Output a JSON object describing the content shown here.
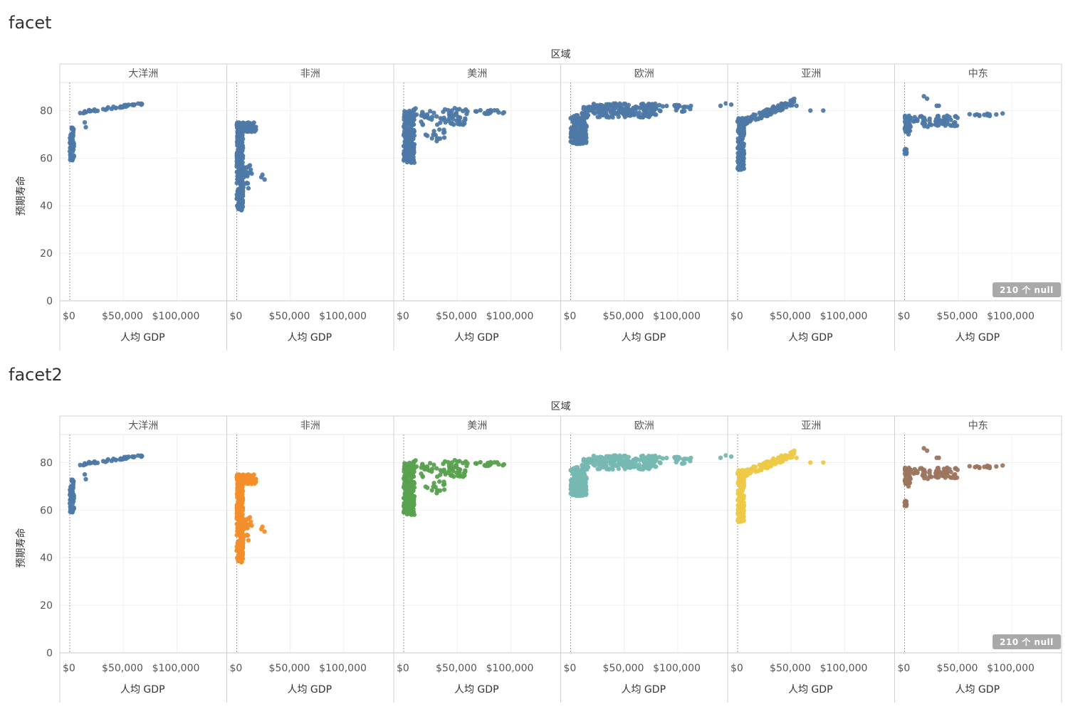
{
  "sheets": [
    {
      "title": "facet",
      "null_badge": "210 个 null",
      "chart_data": {
        "type": "scatter",
        "facet_header": "区域",
        "xlabel": "人均 GDP",
        "ylabel": "预期寿命",
        "x_ticks": [
          "$0",
          "$50,000",
          "$100,000"
        ],
        "y_ticks": [
          "0",
          "20",
          "40",
          "60",
          "80"
        ],
        "xlim": [
          0,
          140000
        ],
        "ylim": [
          0,
          90
        ],
        "color_mode": "single",
        "single_color": "#4e79a7",
        "facets": [
          {
            "name": "大洋洲",
            "color": "#4e79a7"
          },
          {
            "name": "非洲",
            "color": "#f28e2b"
          },
          {
            "name": "美洲",
            "color": "#59a14f"
          },
          {
            "name": "欧洲",
            "color": "#76b7b2"
          },
          {
            "name": "亚洲",
            "color": "#edc948"
          },
          {
            "name": "中东",
            "color": "#9c755f"
          }
        ]
      }
    },
    {
      "title": "facet2",
      "null_badge": "210 个 null",
      "chart_data": {
        "type": "scatter",
        "facet_header": "区域",
        "xlabel": "人均 GDP",
        "ylabel": "预期寿命",
        "x_ticks": [
          "$0",
          "$50,000",
          "$100,000"
        ],
        "y_ticks": [
          "0",
          "20",
          "40",
          "60",
          "80"
        ],
        "xlim": [
          0,
          140000
        ],
        "ylim": [
          0,
          90
        ],
        "color_mode": "per_facet",
        "facets": [
          {
            "name": "大洋洲",
            "color": "#4e79a7"
          },
          {
            "name": "非洲",
            "color": "#f28e2b"
          },
          {
            "name": "美洲",
            "color": "#59a14f"
          },
          {
            "name": "欧洲",
            "color": "#76b7b2"
          },
          {
            "name": "亚洲",
            "color": "#edc948"
          },
          {
            "name": "中东",
            "color": "#9c755f"
          }
        ]
      }
    }
  ]
}
